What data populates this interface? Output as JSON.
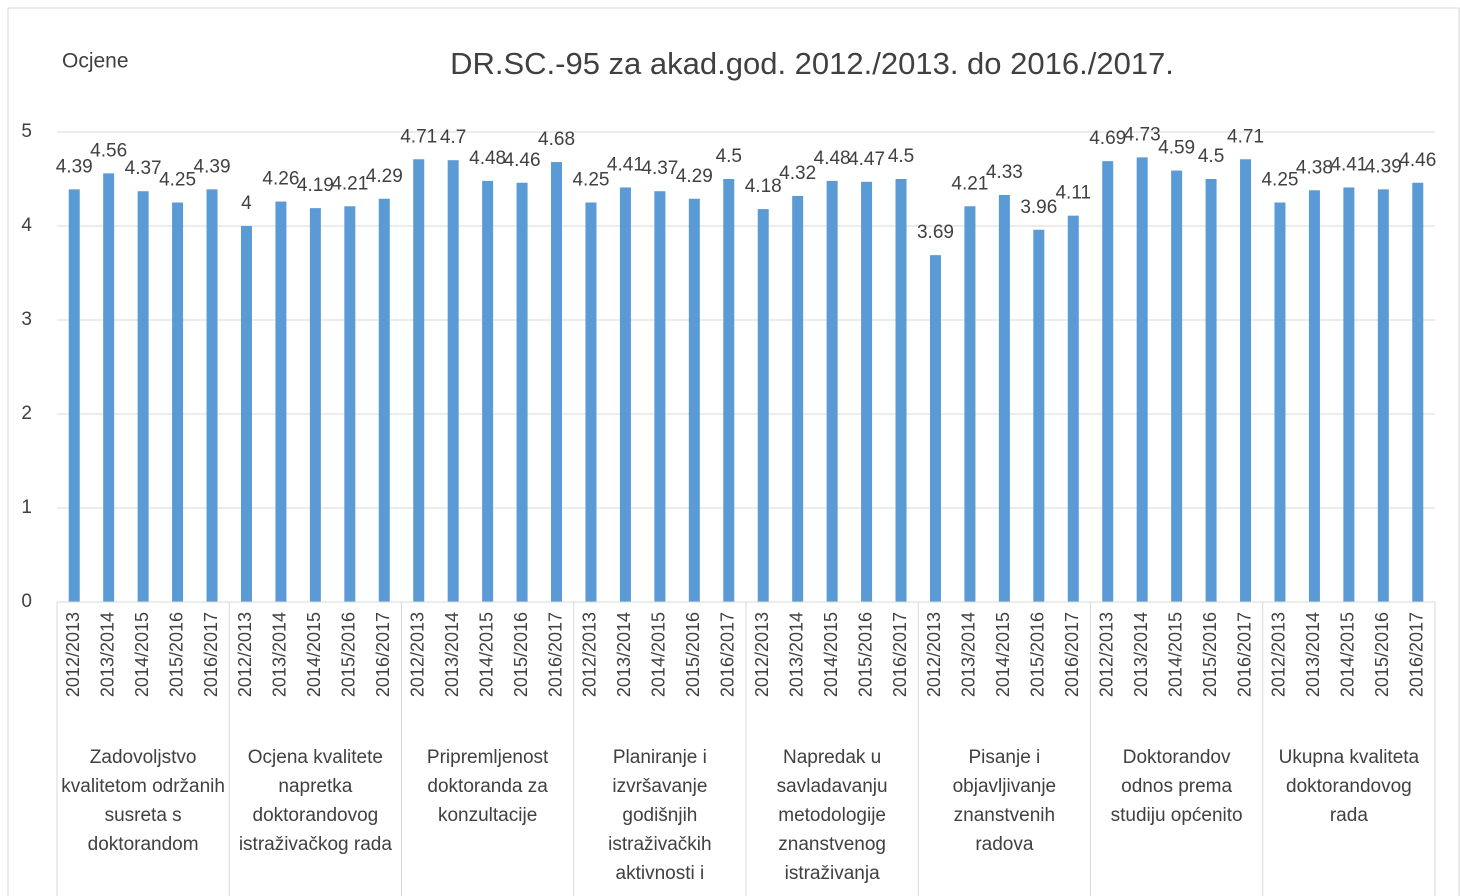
{
  "chart_data": {
    "type": "bar",
    "title": "DR.SC.-95 za akad.god. 2012./2013. do 2016./2017.",
    "y_label": "Ocjene",
    "color": "#5b9bd5",
    "ylim": [
      0,
      5
    ],
    "yticks": [
      0,
      1,
      2,
      3,
      4,
      5
    ],
    "grid": true,
    "categories": [
      "2012/2013",
      "2013/2014",
      "2014/2015",
      "2015/2016",
      "2016/2017"
    ],
    "groups": [
      {
        "name": "Zadovoljstvo kvalitetom održanih susreta s doktorandom",
        "values": [
          4.39,
          4.56,
          4.37,
          4.25,
          4.39
        ]
      },
      {
        "name": "Ocjena kvalitete napretka doktorandovog istraživačkog rada",
        "values": [
          4,
          4.26,
          4.19,
          4.21,
          4.29
        ]
      },
      {
        "name": "Pripremljenost doktoranda za konzultacije",
        "values": [
          4.71,
          4.7,
          4.48,
          4.46,
          4.68
        ]
      },
      {
        "name": "Planiranje i izvršavanje godišnjih istraživačkih aktivnosti i",
        "values": [
          4.25,
          4.41,
          4.37,
          4.29,
          4.5
        ]
      },
      {
        "name": "Napredak u savladavanju metodologije znanstvenog istraživanja",
        "values": [
          4.18,
          4.32,
          4.48,
          4.47,
          4.5
        ]
      },
      {
        "name": "Pisanje i objavljivanje znanstvenih radova",
        "values": [
          3.69,
          4.21,
          4.33,
          3.96,
          4.11
        ]
      },
      {
        "name": "Doktorandov odnos prema studiju općenito",
        "values": [
          4.69,
          4.73,
          4.59,
          4.5,
          4.71
        ]
      },
      {
        "name": "Ukupna kvaliteta doktorandovog rada",
        "values": [
          4.25,
          4.38,
          4.41,
          4.39,
          4.46
        ]
      }
    ]
  }
}
